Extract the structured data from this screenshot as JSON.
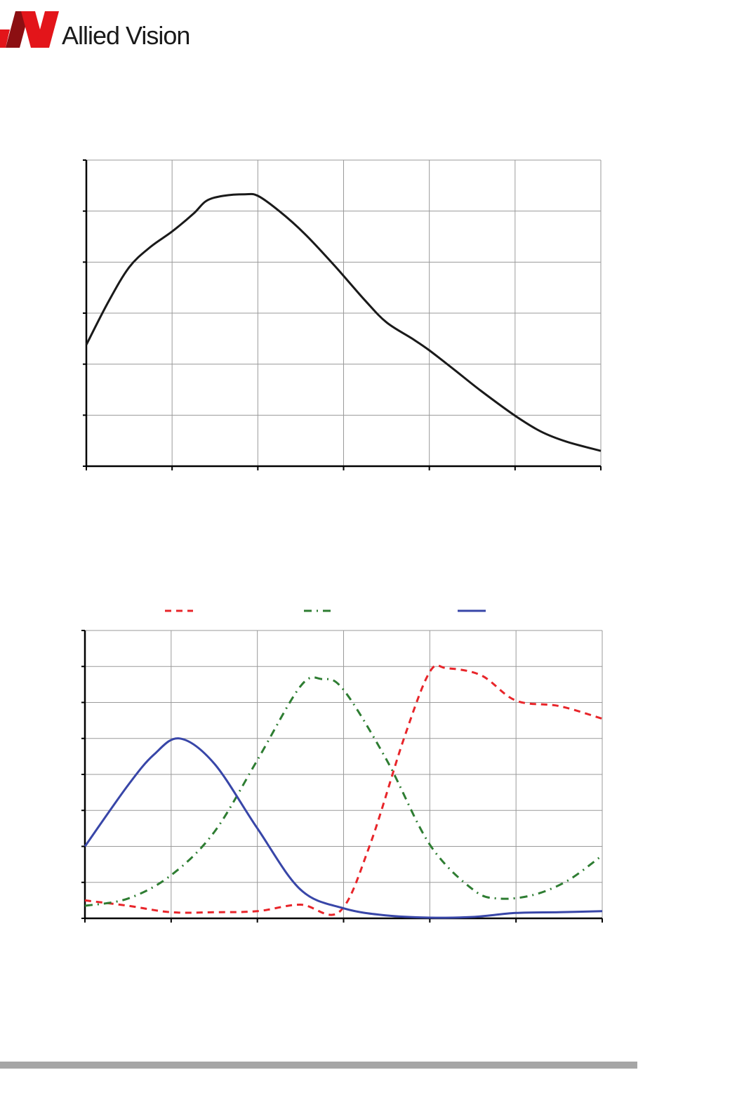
{
  "brand": {
    "name": "Allied Vision",
    "color_primary": "#e3151a",
    "color_dark": "#8c0f12"
  },
  "chart_data": [
    {
      "type": "line",
      "title": "",
      "xlabel": "",
      "ylabel": "",
      "xlim": [
        0,
        6
      ],
      "ylim": [
        0,
        6
      ],
      "x_gridlines": [
        0,
        1,
        2,
        3,
        4,
        5,
        6
      ],
      "y_gridlines": [
        0,
        1,
        2,
        3,
        4,
        5,
        6
      ],
      "grid": true,
      "series": [
        {
          "color": "#1a1a1a",
          "style": "solid",
          "x": [
            0,
            0.25,
            0.5,
            0.75,
            1.0,
            1.25,
            1.4,
            1.6,
            1.85,
            2.0,
            2.25,
            2.55,
            2.9,
            3.25,
            3.5,
            3.8,
            4.0,
            4.3,
            4.6,
            5.0,
            5.3,
            5.6,
            6.0
          ],
          "values": [
            2.38,
            3.2,
            3.9,
            4.3,
            4.6,
            4.95,
            5.2,
            5.3,
            5.33,
            5.3,
            5.0,
            4.55,
            3.92,
            3.25,
            2.82,
            2.5,
            2.27,
            1.88,
            1.48,
            0.99,
            0.68,
            0.48,
            0.3
          ]
        }
      ]
    },
    {
      "type": "line",
      "title": "",
      "xlabel": "",
      "ylabel": "",
      "xlim": [
        0,
        6
      ],
      "ylim": [
        0,
        8
      ],
      "x_gridlines": [
        0,
        1,
        2,
        3,
        4,
        5,
        6
      ],
      "y_gridlines": [
        0,
        1,
        2,
        3,
        4,
        5,
        6,
        7,
        8
      ],
      "grid": true,
      "legend_position": "top-center",
      "series": [
        {
          "color": "#e8252a",
          "style": "dashed",
          "x": [
            0,
            0.5,
            1.0,
            1.5,
            2.0,
            2.5,
            2.95,
            3.3,
            3.7,
            4.0,
            4.2,
            4.6,
            5.0,
            5.5,
            6.0
          ],
          "values": [
            0.5,
            0.35,
            0.17,
            0.17,
            0.2,
            0.38,
            0.18,
            2.0,
            5.0,
            6.85,
            6.95,
            6.75,
            6.05,
            5.9,
            5.55
          ]
        },
        {
          "color": "#2e7d32",
          "style": "dash-dot",
          "x": [
            0,
            0.5,
            1.0,
            1.5,
            2.0,
            2.5,
            2.75,
            3.0,
            3.5,
            4.0,
            4.5,
            4.8,
            5.2,
            5.6,
            6.0
          ],
          "values": [
            0.35,
            0.55,
            1.2,
            2.4,
            4.4,
            6.45,
            6.65,
            6.35,
            4.4,
            2.05,
            0.8,
            0.55,
            0.65,
            1.05,
            1.75
          ]
        },
        {
          "color": "#3846a8",
          "style": "solid",
          "x": [
            0,
            0.5,
            0.8,
            1.1,
            1.5,
            2.0,
            2.5,
            3.0,
            3.5,
            4.0,
            4.5,
            5.0,
            5.5,
            6.0
          ],
          "values": [
            2.0,
            3.7,
            4.55,
            5.0,
            4.3,
            2.5,
            0.8,
            0.28,
            0.08,
            0.02,
            0.04,
            0.15,
            0.17,
            0.2
          ]
        }
      ]
    }
  ]
}
